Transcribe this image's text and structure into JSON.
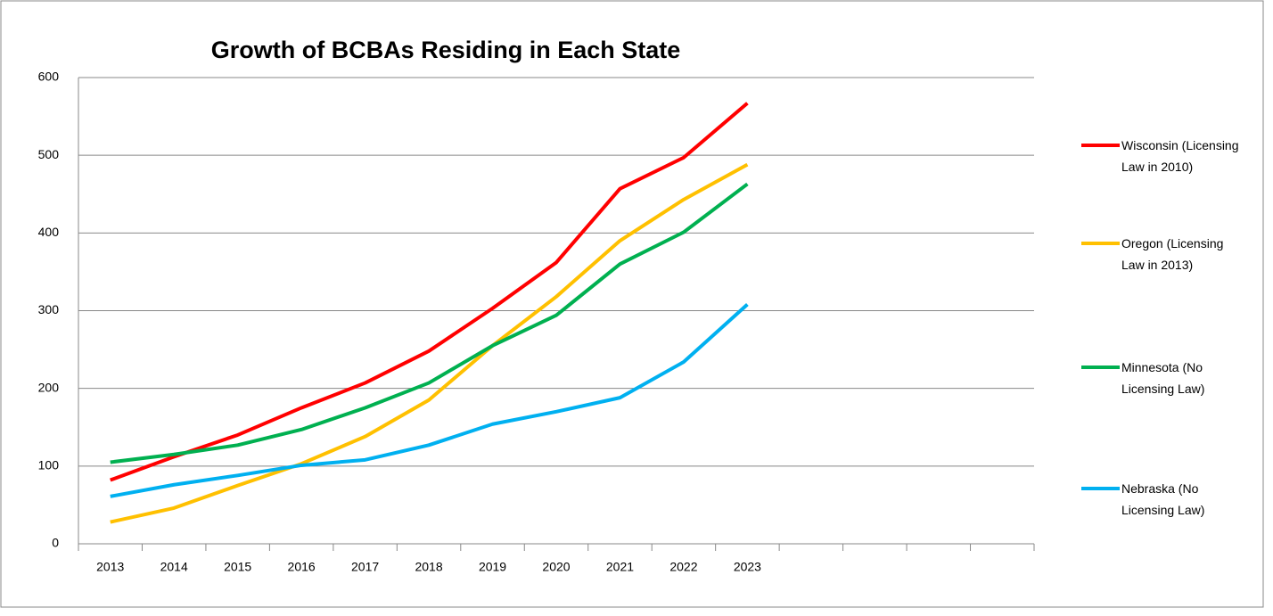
{
  "chart_data": {
    "type": "line",
    "title": "Growth of BCBAs Residing in Each State",
    "categories": [
      "2013",
      "2014",
      "2015",
      "2016",
      "2017",
      "2018",
      "2019",
      "2020",
      "2021",
      "2022",
      "2023",
      null,
      null,
      null,
      null
    ],
    "series": [
      {
        "name": "Wisconsin (Licensing Law in 2010)",
        "color": "#ff0000",
        "values": [
          82,
          112,
          140,
          175,
          207,
          248,
          303,
          362,
          457,
          497,
          567,
          null,
          null,
          null,
          null
        ]
      },
      {
        "name": "Oregon (Licensing Law in 2013)",
        "color": "#ffc000",
        "values": [
          28,
          46,
          75,
          103,
          138,
          185,
          255,
          318,
          390,
          443,
          488,
          null,
          null,
          null,
          null
        ]
      },
      {
        "name": "Minnesota (No Licensing Law)",
        "color": "#00b050",
        "values": [
          105,
          115,
          127,
          147,
          175,
          207,
          255,
          294,
          360,
          401,
          463,
          null,
          null,
          null,
          null
        ]
      },
      {
        "name": "Nebraska (No Licensing Law)",
        "color": "#00b0f0",
        "values": [
          61,
          76,
          88,
          101,
          108,
          127,
          154,
          170,
          188,
          234,
          308,
          null,
          null,
          null,
          null
        ]
      }
    ],
    "ylim": [
      0,
      600
    ],
    "yticks": [
      0,
      100,
      200,
      300,
      400,
      500,
      600
    ],
    "grid": true,
    "legend": "right"
  }
}
